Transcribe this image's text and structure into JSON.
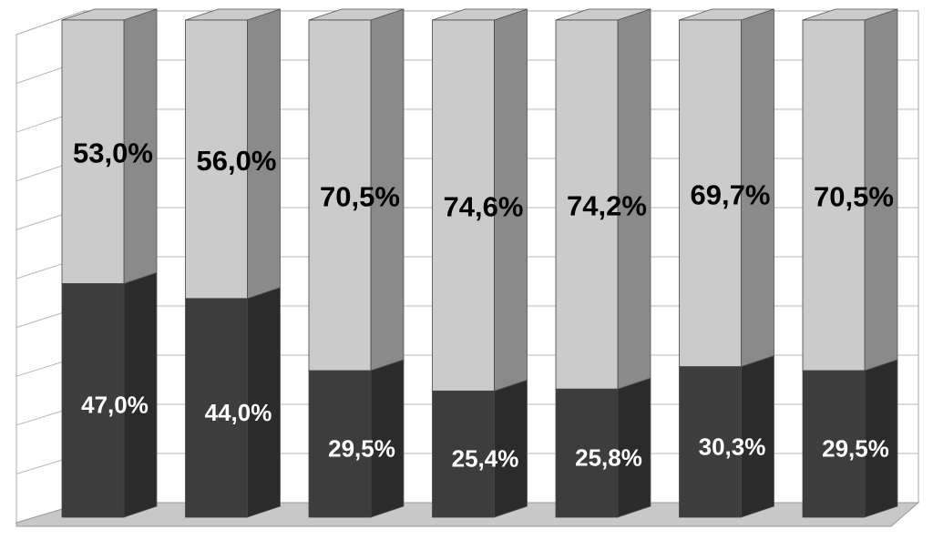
{
  "chart_data": {
    "type": "bar",
    "stacked": true,
    "percent_stacked": true,
    "three_d": true,
    "grid": true,
    "legend": "none",
    "ylim": [
      0,
      100
    ],
    "series": [
      {
        "color": "#3d3d3d",
        "label_color": "#ffffff",
        "values": [
          47.0,
          44.0,
          29.5,
          25.4,
          25.8,
          30.3,
          29.5
        ],
        "labels": [
          "47,0%",
          "44,0%",
          "29,5%",
          "25,4%",
          "25,8%",
          "30,3%",
          "29,5%"
        ]
      },
      {
        "color": "#cbcbcb",
        "label_color": "#000000",
        "values": [
          53.0,
          56.0,
          70.5,
          74.6,
          74.2,
          69.7,
          70.5
        ],
        "labels": [
          "53,0%",
          "56,0%",
          "70,5%",
          "74,6%",
          "74,2%",
          "69,7%",
          "70,5%"
        ]
      }
    ]
  }
}
